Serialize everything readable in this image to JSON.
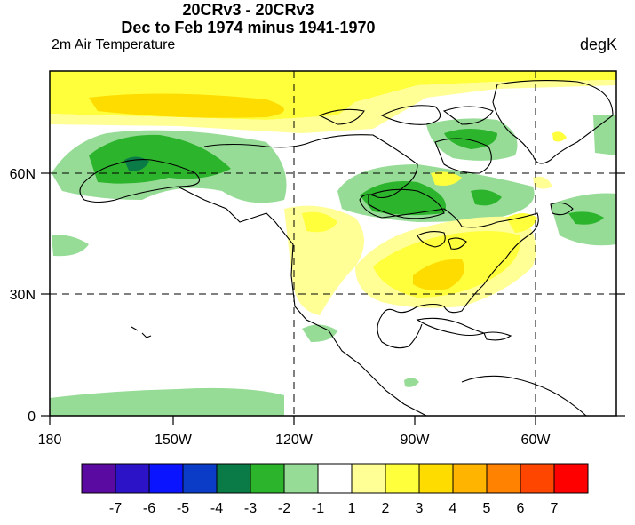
{
  "title_line1": "20CRv3 - 20CRv3",
  "title_line2": "Dec to Feb 1974 minus 1941-1970",
  "left_label": "2m Air Temperature",
  "right_label": "degK",
  "lat_ticks": [
    "60N",
    "30N",
    "0"
  ],
  "lon_ticks": [
    "180",
    "150W",
    "120W",
    "90W",
    "60W"
  ],
  "colorbar": {
    "labels": [
      "-7",
      "-6",
      "-5",
      "-4",
      "-3",
      "-2",
      "-1",
      "1",
      "2",
      "3",
      "4",
      "5",
      "6",
      "7"
    ],
    "colors": [
      "#5a0aa0",
      "#2d13c8",
      "#0a14ff",
      "#0a3cc8",
      "#0a7a46",
      "#2db42d",
      "#96dc96",
      "#ffffff",
      "#ffff96",
      "#ffff3c",
      "#ffdc00",
      "#ffb400",
      "#ff8200",
      "#ff4600",
      "#ff0000"
    ]
  },
  "fill_colors": {
    "neg1": "#96dc96",
    "neg2": "#2db42d",
    "neg3": "#0a7a46",
    "pos1": "#ffff96",
    "pos2": "#ffff3c",
    "pos3": "#ffdc00"
  }
}
